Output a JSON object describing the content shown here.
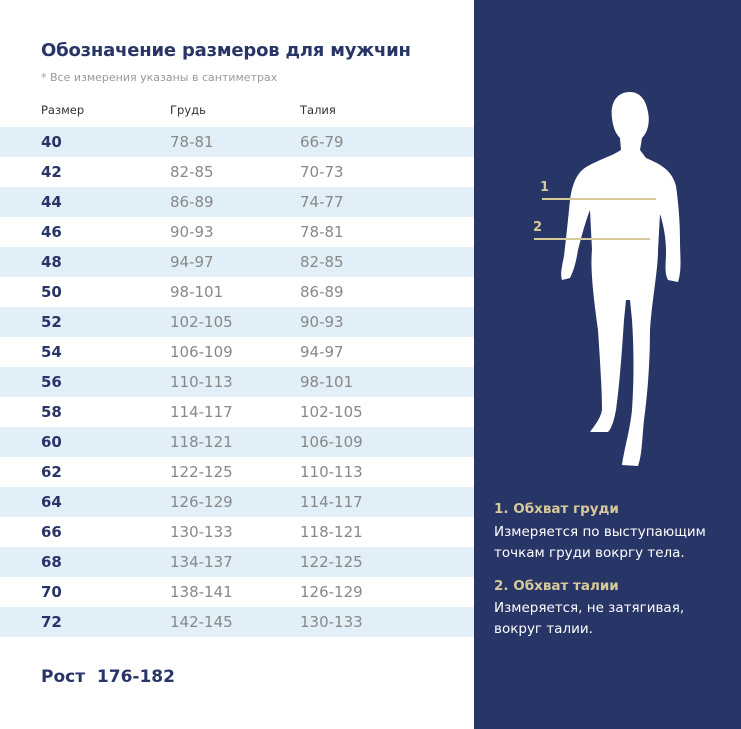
{
  "title": "Обозначение размеров для мужчин",
  "note": "* Все измерения указаны в сантиметрах",
  "columns": [
    "Размер",
    "Грудь",
    "Талия"
  ],
  "rows": [
    [
      "40",
      "78-81",
      "66-79"
    ],
    [
      "42",
      "82-85",
      "70-73"
    ],
    [
      "44",
      "86-89",
      "74-77"
    ],
    [
      "46",
      "90-93",
      "78-81"
    ],
    [
      "48",
      "94-97",
      "82-85"
    ],
    [
      "50",
      "98-101",
      "86-89"
    ],
    [
      "52",
      "102-105",
      "90-93"
    ],
    [
      "54",
      "106-109",
      "94-97"
    ],
    [
      "56",
      "110-113",
      "98-101"
    ],
    [
      "58",
      "114-117",
      "102-105"
    ],
    [
      "60",
      "118-121",
      "106-109"
    ],
    [
      "62",
      "122-125",
      "110-113"
    ],
    [
      "64",
      "126-129",
      "114-117"
    ],
    [
      "66",
      "130-133",
      "118-121"
    ],
    [
      "68",
      "134-137",
      "122-125"
    ],
    [
      "70",
      "138-141",
      "126-129"
    ],
    [
      "72",
      "142-145",
      "130-133"
    ]
  ],
  "height": {
    "label": "Рост",
    "value": "176-182"
  },
  "figure": {
    "marker1": "1",
    "marker2": "2"
  },
  "legend": [
    {
      "title": "1. Обхват груди",
      "text": "Измеряется по  выступающим точкам груди вокргу тела."
    },
    {
      "title": "2. Обхват талии",
      "text": "Измеряется, не затягивая, вокруг талии."
    }
  ],
  "colors": {
    "navy": "#283567",
    "gold": "#d6c99a",
    "row_highlight": "#e0eff8"
  }
}
